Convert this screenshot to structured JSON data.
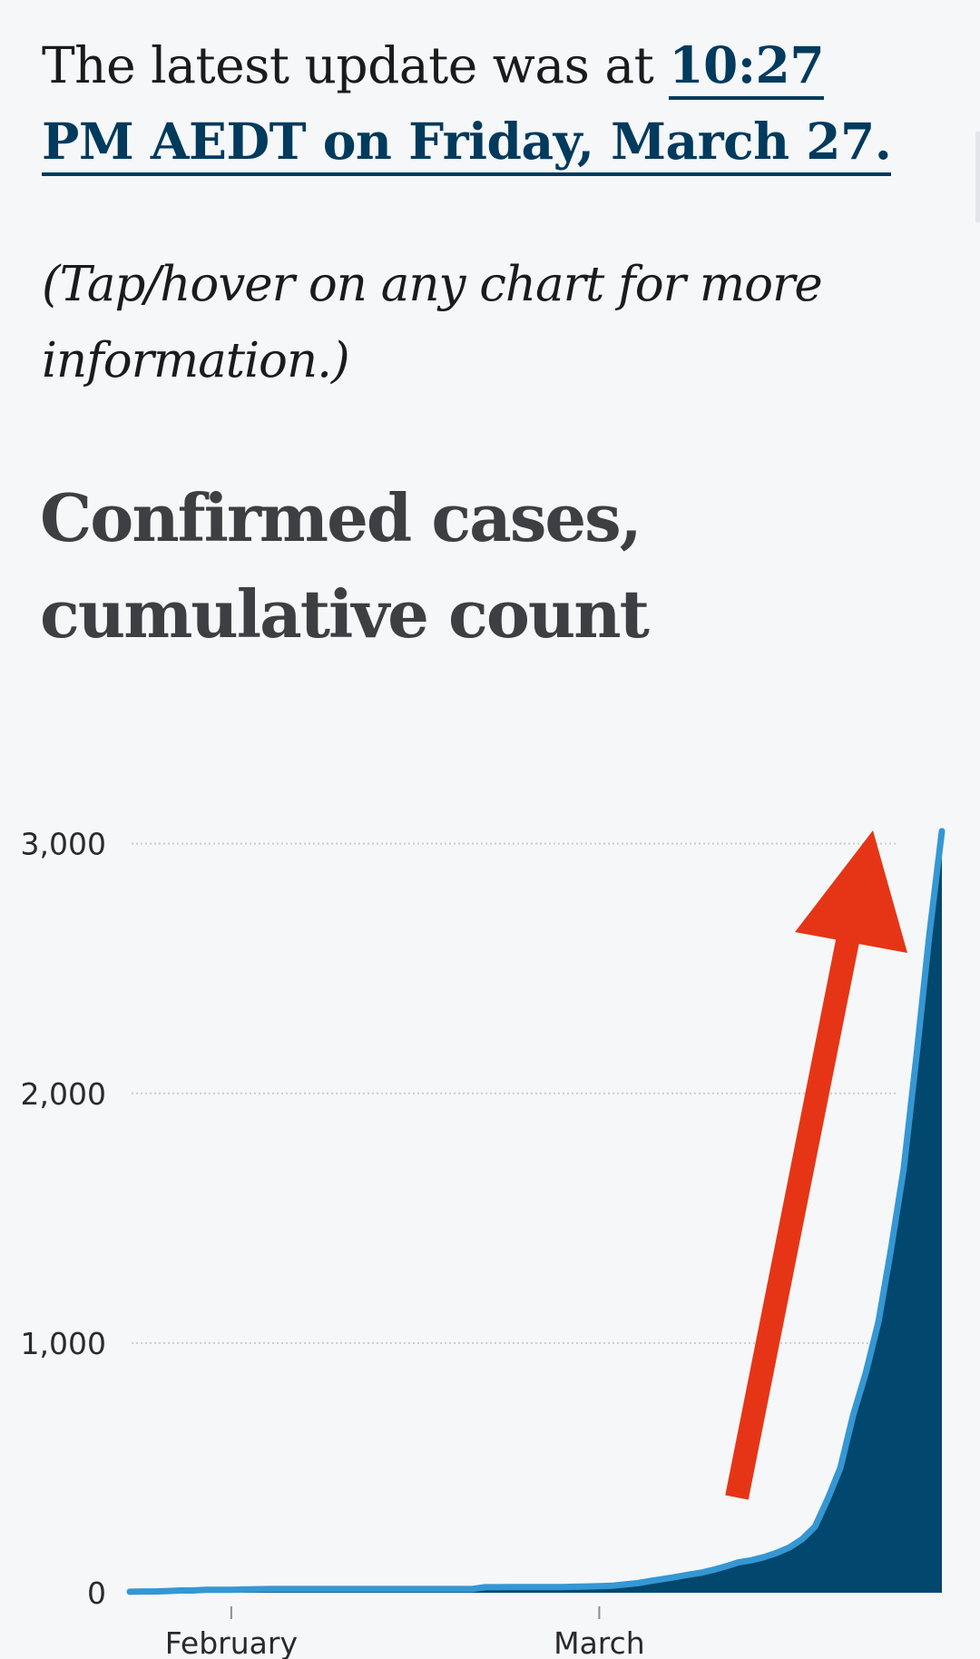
{
  "update": {
    "prefix": "The latest update was at ",
    "link": "10:27 PM AEDT on Friday, March 27."
  },
  "hint": "(Tap/hover on any chart for more information.)",
  "colors": {
    "area_fill": "#02476d",
    "line": "#3597d3",
    "arrow": "#e63516",
    "grid": "#c9ccd0",
    "link": "#003a5d"
  },
  "chart_data": {
    "type": "area",
    "title": "Confirmed cases, cumulative count",
    "xlabel": "",
    "ylabel": "",
    "ylim": [
      0,
      3100
    ],
    "yticks": [
      0,
      1000,
      2000,
      3000
    ],
    "ytick_labels": [
      "0",
      "1,000",
      "2,000",
      "3,000"
    ],
    "xtick_labels": [
      {
        "label": "February",
        "day": 8
      },
      {
        "label": "March",
        "day": 37
      }
    ],
    "grid": true,
    "legend": "none",
    "annotation": "red upward arrow",
    "x_start": "Jan 25",
    "x_end": "Mar 27",
    "series": [
      {
        "values": [
          4,
          5,
          5,
          7,
          9,
          9,
          12,
          12,
          12,
          13,
          14,
          15,
          15,
          15,
          15,
          15,
          15,
          15,
          15,
          15,
          15,
          15,
          15,
          15,
          15,
          15,
          15,
          15,
          22,
          22,
          23,
          23,
          23,
          23,
          23,
          24,
          25,
          26,
          28,
          33,
          38,
          47,
          55,
          63,
          72,
          80,
          92,
          106,
          122,
          130,
          143,
          160,
          182,
          215,
          265,
          375,
          500,
          710,
          880,
          1085,
          1380,
          1700,
          2150,
          2630,
          3050
        ]
      }
    ]
  }
}
